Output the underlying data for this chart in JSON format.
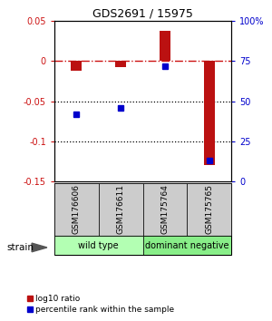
{
  "title": "GDS2691 / 15975",
  "categories": [
    "GSM176606",
    "GSM176611",
    "GSM175764",
    "GSM175765"
  ],
  "log10_ratio": [
    -0.012,
    -0.008,
    0.038,
    -0.13
  ],
  "percentile_rank": [
    42,
    46,
    72,
    13
  ],
  "ylim_left": [
    -0.15,
    0.05
  ],
  "ylim_right": [
    0,
    100
  ],
  "yticks_left": [
    0.05,
    0,
    -0.05,
    -0.1,
    -0.15
  ],
  "yticks_right": [
    100,
    75,
    50,
    25,
    0
  ],
  "ytick_labels_left": [
    "0.05",
    "0",
    "-0.05",
    "-0.1",
    "-0.15"
  ],
  "ytick_labels_right": [
    "100%",
    "75",
    "50",
    "25",
    "0"
  ],
  "groups": [
    {
      "label": "wild type",
      "indices": [
        0,
        1
      ],
      "color": "#b3ffb3"
    },
    {
      "label": "dominant negative",
      "indices": [
        2,
        3
      ],
      "color": "#88ee88"
    }
  ],
  "strain_label": "strain",
  "bar_color": "#bb1111",
  "marker_color": "#0000cc",
  "ref_line_color": "#cc1111",
  "dotted_line_color": "#000000",
  "background_color": "#ffffff",
  "bar_width": 0.25,
  "label_box_color": "#cccccc",
  "legend_red_label": "log10 ratio",
  "legend_blue_label": "percentile rank within the sample"
}
